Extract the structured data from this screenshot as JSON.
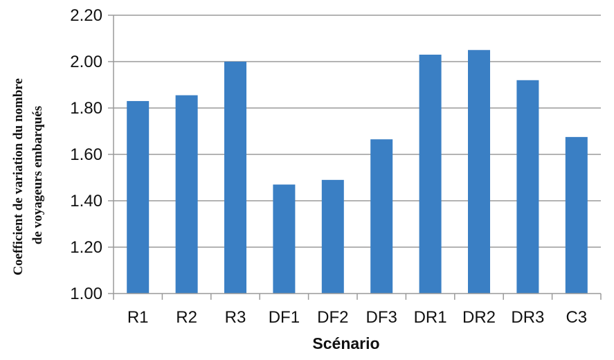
{
  "chart_data": {
    "type": "bar",
    "categories": [
      "R1",
      "R2",
      "R3",
      "DF1",
      "DF2",
      "DF3",
      "DR1",
      "DR2",
      "DR3",
      "C3"
    ],
    "values": [
      1.83,
      1.855,
      2.0,
      1.47,
      1.49,
      1.665,
      2.03,
      2.05,
      1.92,
      1.675
    ],
    "title": "",
    "xlabel": "Scénario",
    "ylabel_line1": "Coefficient de variation du nombre",
    "ylabel_line2": "de voyageurs embarqués",
    "ylim": [
      1.0,
      2.2
    ],
    "yticks": [
      "1.00",
      "1.20",
      "1.40",
      "1.60",
      "1.80",
      "2.00",
      "2.20"
    ],
    "grid": true,
    "legend": "none",
    "bar_color": "#3a7fc4",
    "grid_color": "#9a9a9a"
  }
}
